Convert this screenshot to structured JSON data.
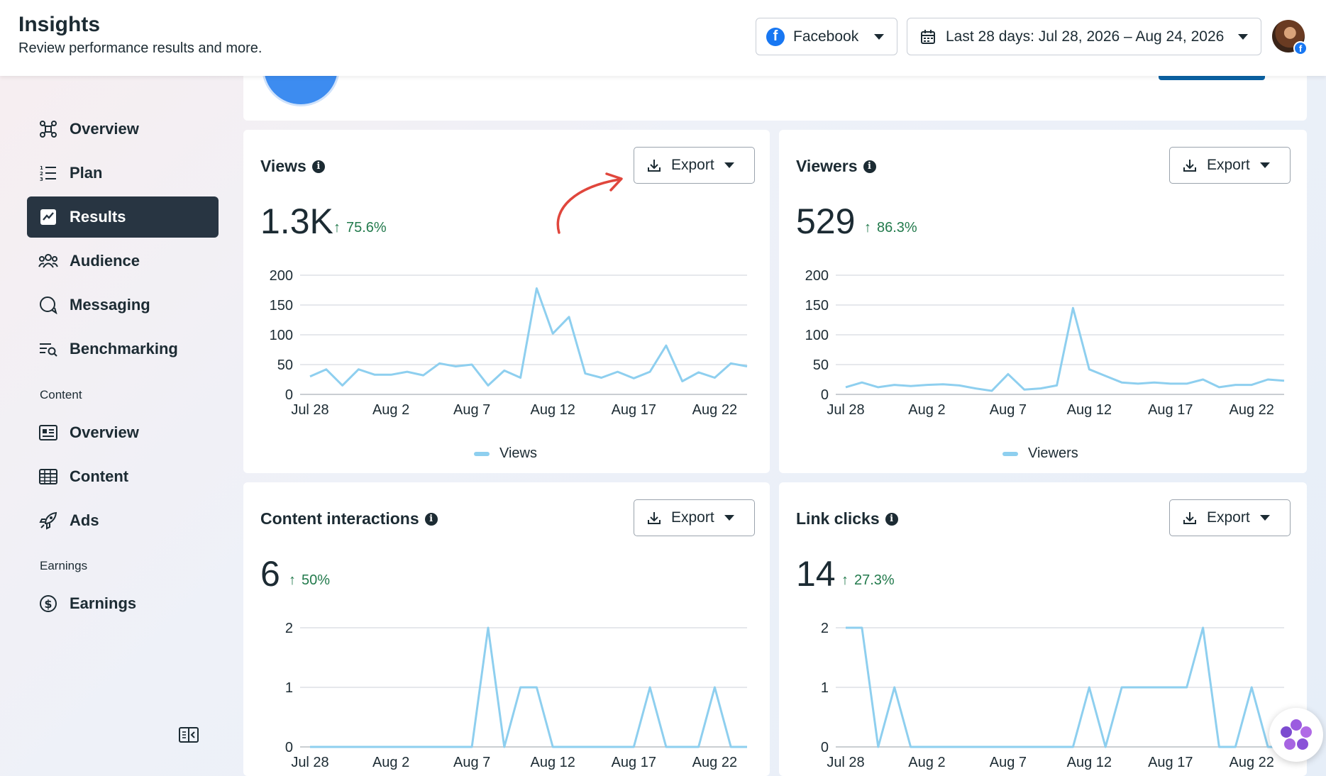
{
  "header": {
    "title": "Insights",
    "subtitle": "Review performance results and more.",
    "platform_selector": {
      "icon": "facebook-icon",
      "label": "Facebook"
    },
    "date_selector": {
      "icon": "calendar-icon",
      "label": "Last 28 days: Jul 28, 2026 – Aug 24, 2026"
    },
    "avatar": "profile-avatar"
  },
  "sidebar": {
    "items": [
      {
        "label": "Overview",
        "icon": "overview-icon",
        "active": false
      },
      {
        "label": "Plan",
        "icon": "plan-list-icon",
        "active": false
      },
      {
        "label": "Results",
        "icon": "results-chart-icon",
        "active": true
      },
      {
        "label": "Audience",
        "icon": "audience-icon",
        "active": false
      },
      {
        "label": "Messaging",
        "icon": "messaging-icon",
        "active": false
      },
      {
        "label": "Benchmarking",
        "icon": "benchmarking-icon",
        "active": false
      }
    ],
    "content_section_label": "Content",
    "content_items": [
      {
        "label": "Overview",
        "icon": "content-overview-icon"
      },
      {
        "label": "Content",
        "icon": "content-table-icon"
      },
      {
        "label": "Ads",
        "icon": "rocket-icon"
      }
    ],
    "earnings_section_label": "Earnings",
    "earnings_items": [
      {
        "label": "Earnings",
        "icon": "dollar-icon"
      }
    ]
  },
  "cards": [
    {
      "title": "Views",
      "export_label": "Export",
      "value": "1.3K",
      "delta": "75.6%",
      "legend": "Views"
    },
    {
      "title": "Viewers",
      "export_label": "Export",
      "value": "529",
      "delta": "86.3%",
      "legend": "Viewers"
    },
    {
      "title": "Content interactions",
      "export_label": "Export",
      "value": "6",
      "delta": "50%",
      "legend": ""
    },
    {
      "title": "Link clicks",
      "export_label": "Export",
      "value": "14",
      "delta": "27.3%",
      "legend": ""
    }
  ],
  "colors": {
    "line": "#8ecfef",
    "accent_dark": "#283542",
    "delta_green": "#227a4c",
    "annotation_red": "#e0463c"
  },
  "chart_data": [
    {
      "type": "line",
      "title": "Views",
      "x": [
        "Jul 28",
        "Jul 29",
        "Jul 30",
        "Jul 31",
        "Aug 1",
        "Aug 2",
        "Aug 3",
        "Aug 4",
        "Aug 5",
        "Aug 6",
        "Aug 7",
        "Aug 8",
        "Aug 9",
        "Aug 10",
        "Aug 11",
        "Aug 12",
        "Aug 13",
        "Aug 14",
        "Aug 15",
        "Aug 16",
        "Aug 17",
        "Aug 18",
        "Aug 19",
        "Aug 20",
        "Aug 21",
        "Aug 22",
        "Aug 23",
        "Aug 24"
      ],
      "xticks": [
        "Jul 28",
        "Aug 2",
        "Aug 7",
        "Aug 12",
        "Aug 17",
        "Aug 22"
      ],
      "yticks": [
        0,
        50,
        100,
        150,
        200
      ],
      "ylim": [
        0,
        200
      ],
      "series": [
        {
          "name": "Views",
          "values": [
            30,
            42,
            15,
            42,
            33,
            33,
            38,
            32,
            52,
            47,
            50,
            15,
            40,
            28,
            178,
            102,
            130,
            35,
            28,
            38,
            27,
            38,
            82,
            22,
            37,
            28,
            52,
            47
          ]
        }
      ]
    },
    {
      "type": "line",
      "title": "Viewers",
      "x": [
        "Jul 28",
        "Jul 29",
        "Jul 30",
        "Jul 31",
        "Aug 1",
        "Aug 2",
        "Aug 3",
        "Aug 4",
        "Aug 5",
        "Aug 6",
        "Aug 7",
        "Aug 8",
        "Aug 9",
        "Aug 10",
        "Aug 11",
        "Aug 12",
        "Aug 13",
        "Aug 14",
        "Aug 15",
        "Aug 16",
        "Aug 17",
        "Aug 18",
        "Aug 19",
        "Aug 20",
        "Aug 21",
        "Aug 22",
        "Aug 23",
        "Aug 24"
      ],
      "xticks": [
        "Jul 28",
        "Aug 2",
        "Aug 7",
        "Aug 12",
        "Aug 17",
        "Aug 22"
      ],
      "yticks": [
        0,
        50,
        100,
        150,
        200
      ],
      "ylim": [
        0,
        200
      ],
      "series": [
        {
          "name": "Viewers",
          "values": [
            12,
            20,
            12,
            16,
            14,
            16,
            17,
            15,
            10,
            6,
            34,
            8,
            10,
            15,
            145,
            42,
            31,
            20,
            18,
            20,
            18,
            18,
            25,
            12,
            16,
            16,
            25,
            23
          ]
        }
      ]
    },
    {
      "type": "line",
      "title": "Content interactions",
      "x": [
        "Jul 28",
        "Jul 29",
        "Jul 30",
        "Jul 31",
        "Aug 1",
        "Aug 2",
        "Aug 3",
        "Aug 4",
        "Aug 5",
        "Aug 6",
        "Aug 7",
        "Aug 8",
        "Aug 9",
        "Aug 10",
        "Aug 11",
        "Aug 12",
        "Aug 13",
        "Aug 14",
        "Aug 15",
        "Aug 16",
        "Aug 17",
        "Aug 18",
        "Aug 19",
        "Aug 20",
        "Aug 21",
        "Aug 22",
        "Aug 23",
        "Aug 24"
      ],
      "xticks": [
        "Jul 28",
        "Aug 2",
        "Aug 7",
        "Aug 12",
        "Aug 17",
        "Aug 22"
      ],
      "yticks": [
        0,
        1,
        2
      ],
      "ylim": [
        0,
        2
      ],
      "series": [
        {
          "name": "Content interactions",
          "values": [
            0,
            0,
            0,
            0,
            0,
            0,
            0,
            0,
            0,
            0,
            0,
            2,
            0,
            1,
            1,
            0,
            0,
            0,
            0,
            0,
            0,
            1,
            0,
            0,
            0,
            1,
            0,
            0
          ]
        }
      ]
    },
    {
      "type": "line",
      "title": "Link clicks",
      "x": [
        "Jul 28",
        "Jul 29",
        "Jul 30",
        "Jul 31",
        "Aug 1",
        "Aug 2",
        "Aug 3",
        "Aug 4",
        "Aug 5",
        "Aug 6",
        "Aug 7",
        "Aug 8",
        "Aug 9",
        "Aug 10",
        "Aug 11",
        "Aug 12",
        "Aug 13",
        "Aug 14",
        "Aug 15",
        "Aug 16",
        "Aug 17",
        "Aug 18",
        "Aug 19",
        "Aug 20",
        "Aug 21",
        "Aug 22",
        "Aug 23",
        "Aug 24"
      ],
      "xticks": [
        "Jul 28",
        "Aug 2",
        "Aug 7",
        "Aug 12",
        "Aug 17",
        "Aug 22"
      ],
      "yticks": [
        0,
        1,
        2
      ],
      "ylim": [
        0,
        2
      ],
      "series": [
        {
          "name": "Link clicks",
          "values": [
            2,
            2,
            0,
            1,
            0,
            0,
            0,
            0,
            0,
            0,
            0,
            0,
            0,
            0,
            0,
            1,
            0,
            1,
            1,
            1,
            1,
            1,
            2,
            0,
            0,
            1,
            0,
            0
          ]
        }
      ]
    }
  ]
}
